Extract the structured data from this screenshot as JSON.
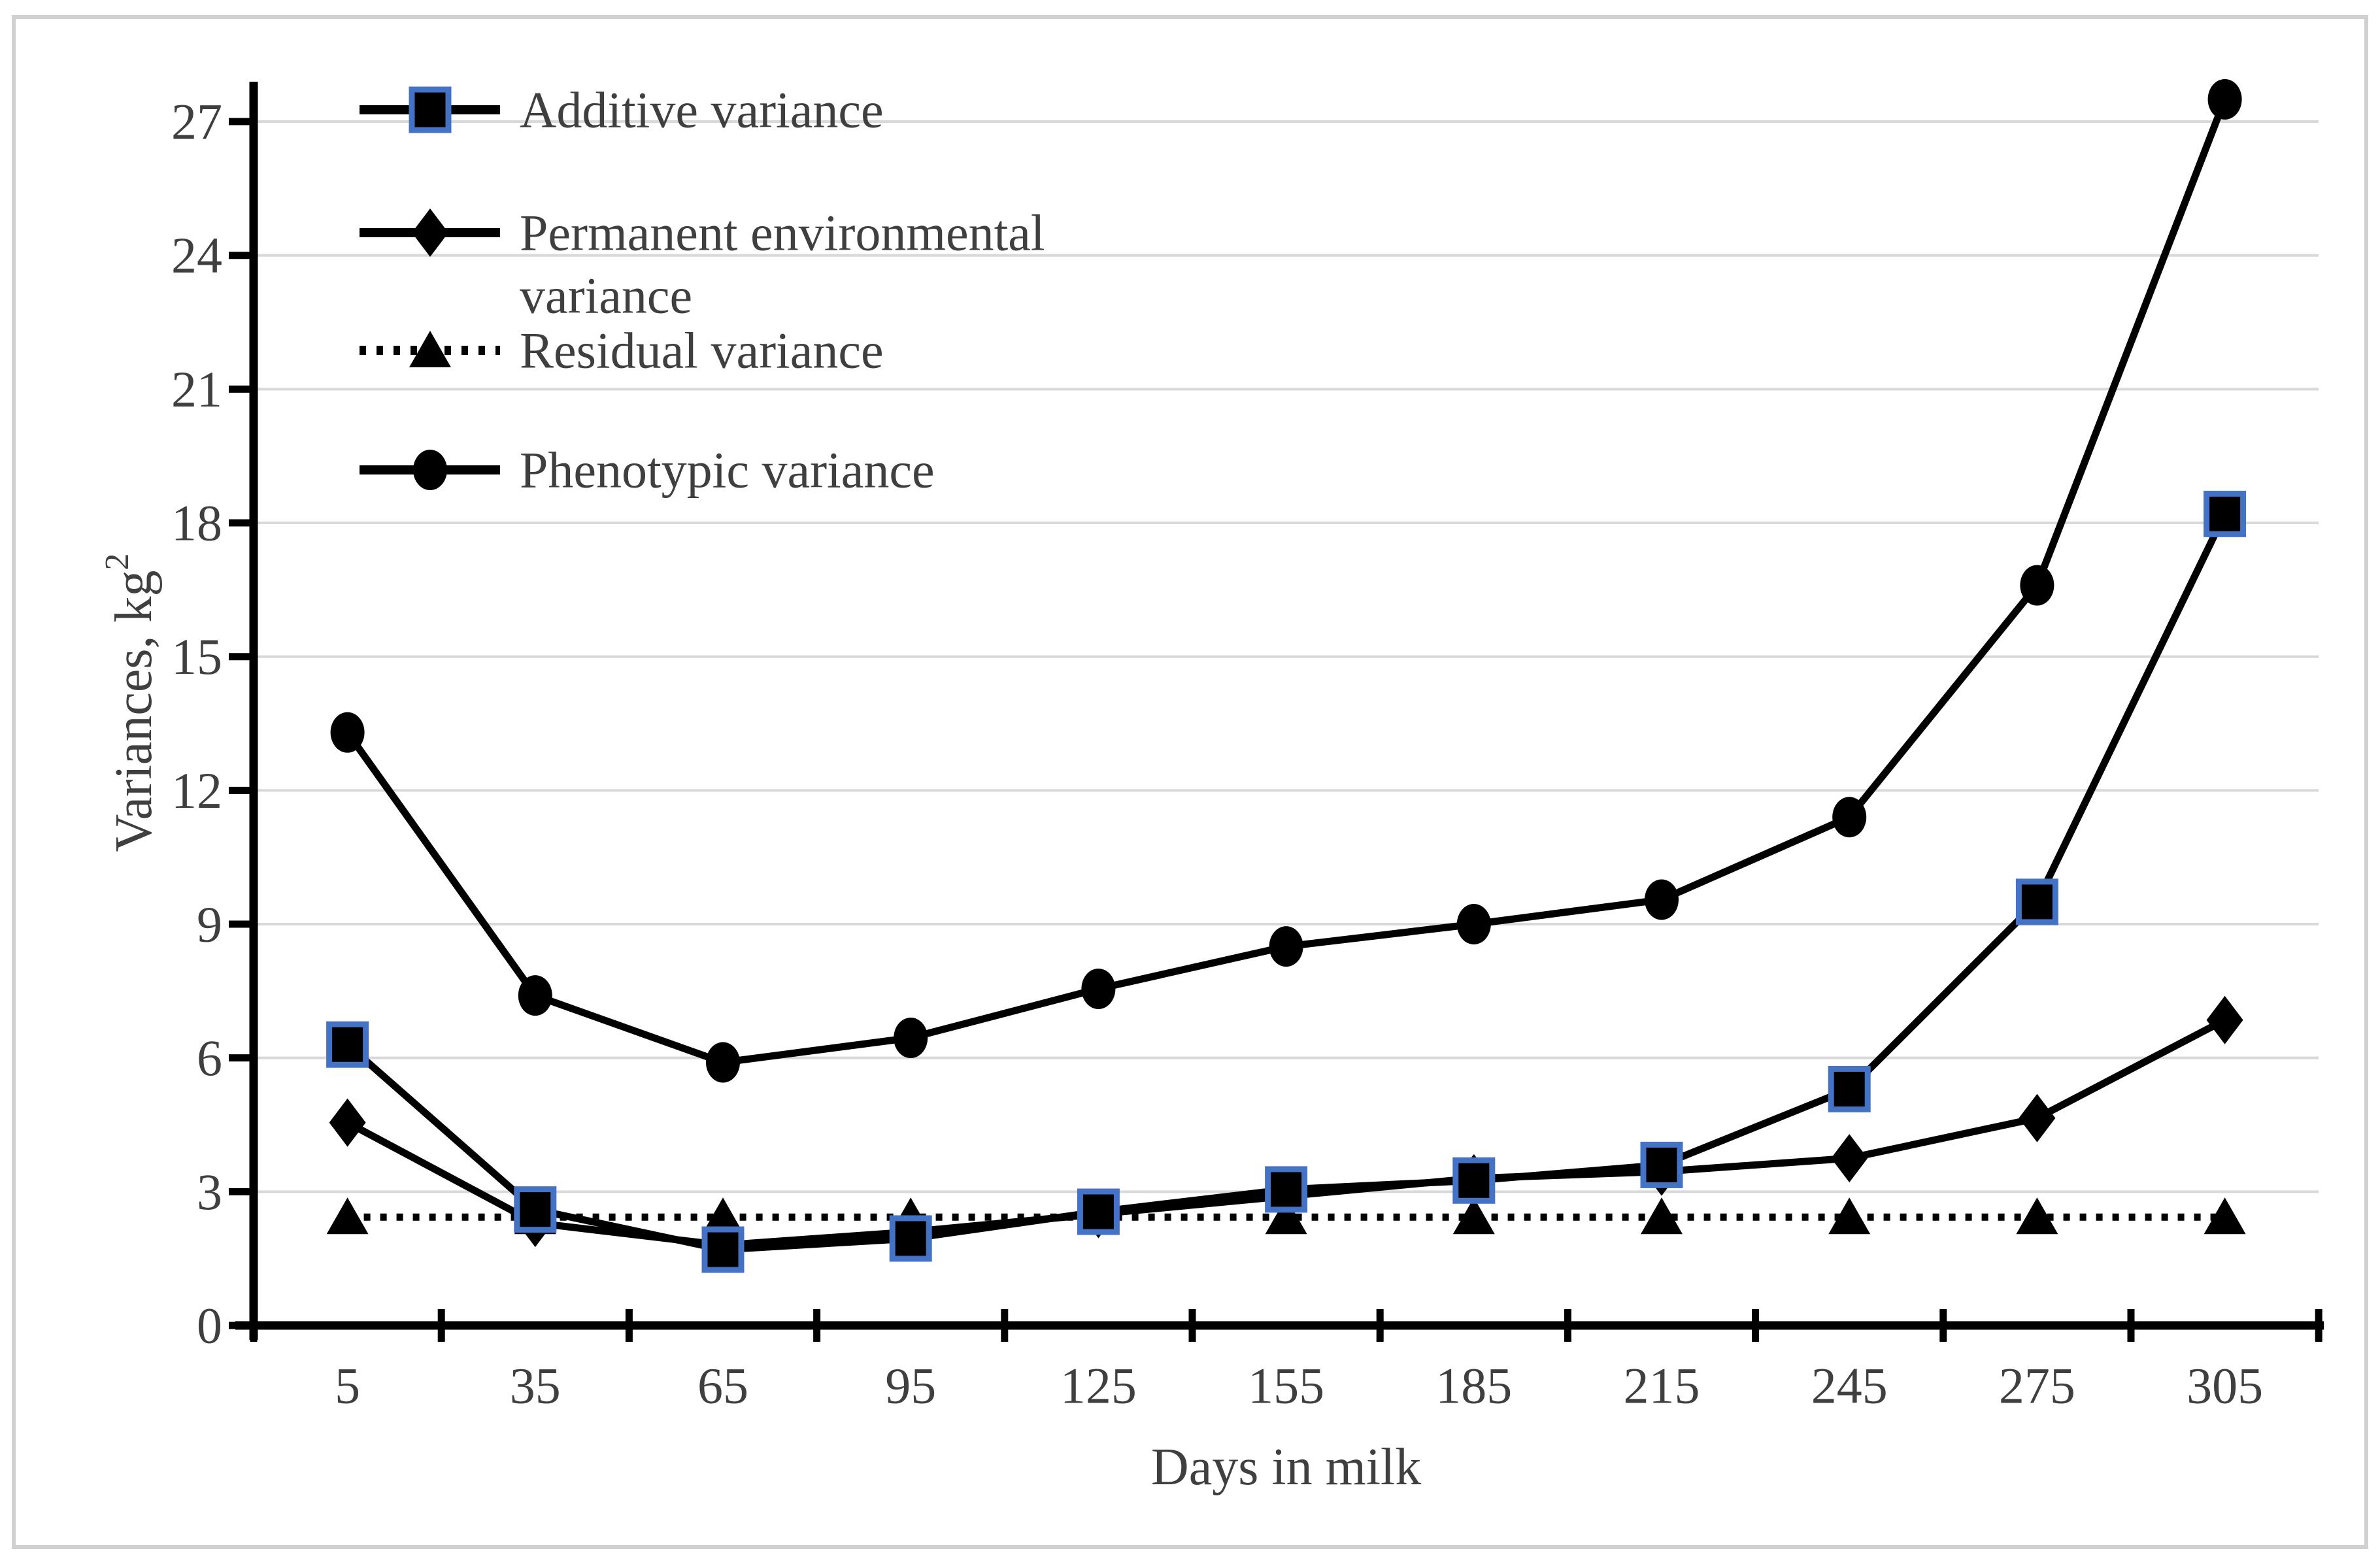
{
  "chart_data": {
    "type": "line",
    "title": "",
    "xlabel": "Days in milk",
    "ylabel": "Variances, kg",
    "ylabel_superscript": "2",
    "x_categories": [
      "5",
      "35",
      "65",
      "95",
      "125",
      "155",
      "185",
      "215",
      "245",
      "275",
      "305"
    ],
    "ylim": [
      0,
      27
    ],
    "ytick_step": 3,
    "grid": true,
    "legend_position": "top-left",
    "series": [
      {
        "name": "Additive variance",
        "legend_lines": [
          "Additive variance"
        ],
        "marker": "square",
        "line_style": "solid",
        "values": [
          6.3,
          2.6,
          1.7,
          1.95,
          2.55,
          3.05,
          3.25,
          3.6,
          5.3,
          9.5,
          18.2
        ]
      },
      {
        "name": "Permanent environmental variance",
        "legend_lines": [
          "Permanent environmental",
          "variance"
        ],
        "marker": "diamond",
        "line_style": "solid",
        "values": [
          4.55,
          2.3,
          1.8,
          2.1,
          2.5,
          2.9,
          3.3,
          3.45,
          3.75,
          4.65,
          6.85
        ]
      },
      {
        "name": "Residual variance",
        "legend_lines": [
          "Residual variance"
        ],
        "marker": "triangle",
        "line_style": "dotted",
        "values": [
          2.43,
          2.43,
          2.43,
          2.43,
          2.43,
          2.43,
          2.43,
          2.43,
          2.43,
          2.43,
          2.43
        ]
      },
      {
        "name": "Phenotypic variance",
        "legend_lines": [
          "Phenotypic variance"
        ],
        "marker": "circle",
        "line_style": "solid",
        "values": [
          13.3,
          7.4,
          5.9,
          6.45,
          7.55,
          8.5,
          9.0,
          9.55,
          11.4,
          16.6,
          27.5
        ]
      }
    ],
    "colors": {
      "series": "#000000",
      "marker_accent": "#4472C4",
      "grid": "#d9d9d9",
      "text": "#3f3f3f",
      "axis": "#000000",
      "border": "#d0d0d0",
      "background": "#ffffff"
    }
  }
}
